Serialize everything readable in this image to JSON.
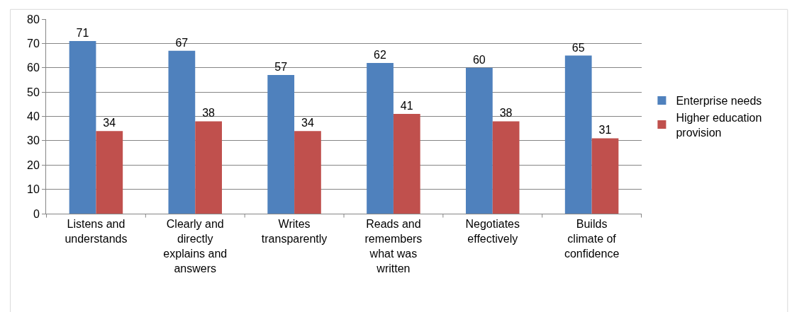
{
  "chart_data": {
    "type": "bar",
    "categories": [
      "Listens and understands",
      "Clearly and directly explains and answers",
      "Writes transparently",
      "Reads and remembers what was written",
      "Negotiates effectively",
      "Builds climate of confidence"
    ],
    "series": [
      {
        "name": "Enterprise needs",
        "color": "#4f81bd",
        "values": [
          71,
          67,
          57,
          62,
          60,
          65
        ]
      },
      {
        "name": "Higher education provision",
        "color": "#c0504d",
        "values": [
          34,
          38,
          34,
          41,
          38,
          31
        ]
      }
    ],
    "ylim": [
      0,
      80
    ],
    "yticks": [
      0,
      10,
      20,
      30,
      40,
      50,
      60,
      70,
      80
    ],
    "grid": "y",
    "legend": "right",
    "data_labels": true
  }
}
